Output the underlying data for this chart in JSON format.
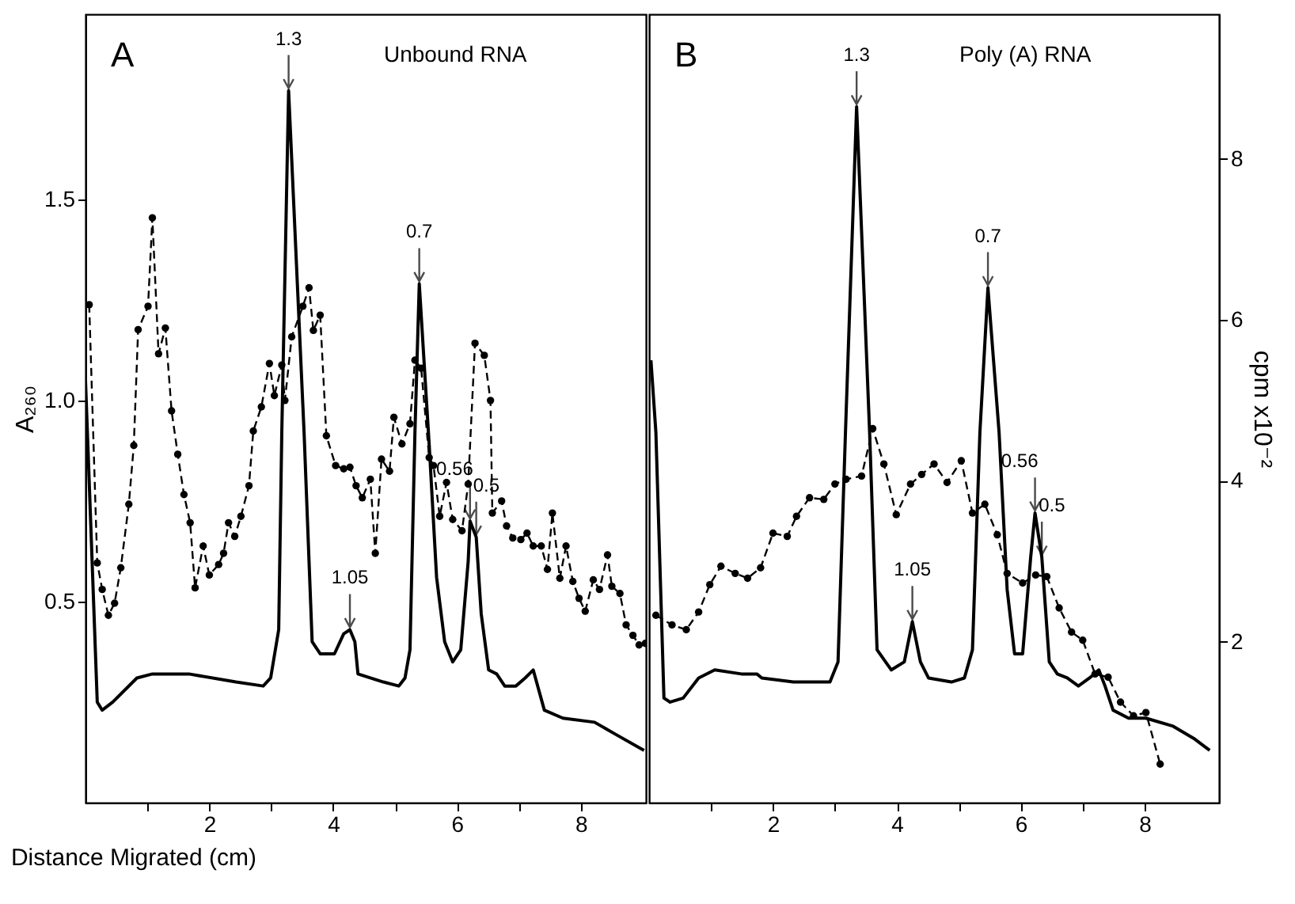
{
  "chart_data": [
    {
      "type": "line",
      "title": "Unbound RNA",
      "xlabel": "Distance Migrated (cm)",
      "ylabel": "A₂₆₀",
      "xlim": [
        0,
        9.05
      ],
      "xticks": [
        {
          "value": 1,
          "label": null
        },
        2,
        {
          "value": 3,
          "label": null
        },
        4,
        {
          "value": 5,
          "label": null
        },
        6,
        {
          "value": 7,
          "label": null
        },
        8
      ],
      "ylim": [
        0,
        1.96
      ],
      "yticks": [
        {
          "value": 0.5,
          "label": "0.5"
        },
        {
          "value": 1,
          "label": "1.0"
        },
        {
          "value": 1.5,
          "label": "1.5"
        }
      ],
      "y2lim": [
        0,
        9.8
      ],
      "legend": false,
      "grid": false,
      "annotations": [
        "A",
        {
          "text": "1.3",
          "x": 3.28,
          "y": 1.77
        },
        {
          "text": "1.05",
          "x": 4.27,
          "y": 0.43
        },
        {
          "text": "0.7",
          "x": 5.39,
          "y": 1.29
        },
        {
          "text": "0.56",
          "x": 6.21,
          "y": 0.7
        },
        {
          "text": "0.5",
          "x": 6.31,
          "y": 0.66
        }
      ],
      "series": [
        {
          "type": "line",
          "color": "#000000",
          "line_style": "solid",
          "marker": "none",
          "x": [
            0.0,
            0.19,
            0.27,
            0.44,
            0.83,
            1.08,
            1.67,
            2.43,
            2.87,
            2.99,
            3.12,
            3.17,
            3.28,
            3.53,
            3.66,
            3.79,
            4.02,
            4.17,
            4.27,
            4.35,
            4.4,
            4.81,
            5.06,
            5.16,
            5.24,
            5.32,
            5.39,
            5.55,
            5.67,
            5.8,
            5.93,
            6.06,
            6.18,
            6.21,
            6.31,
            6.39,
            6.51,
            6.64,
            6.77,
            6.95,
            7.1,
            7.23,
            7.41,
            7.71,
            8.22,
            8.56,
            9.02
          ],
          "values": [
            1.05,
            0.25,
            0.23,
            0.25,
            0.31,
            0.32,
            0.32,
            0.3,
            0.29,
            0.31,
            0.43,
            0.92,
            1.77,
            0.92,
            0.4,
            0.37,
            0.37,
            0.42,
            0.43,
            0.4,
            0.32,
            0.3,
            0.29,
            0.31,
            0.38,
            0.92,
            1.29,
            0.89,
            0.56,
            0.4,
            0.35,
            0.38,
            0.6,
            0.7,
            0.66,
            0.47,
            0.33,
            0.32,
            0.29,
            0.29,
            0.31,
            0.33,
            0.23,
            0.21,
            0.2,
            0.17,
            0.13
          ]
        },
        {
          "type": "line",
          "axis": "y2",
          "color": "#000000",
          "line_style": "dashed",
          "marker": "circle",
          "x": [
            0.06,
            0.19,
            0.27,
            0.37,
            0.47,
            0.57,
            0.7,
            0.78,
            0.85,
            1.01,
            1.08,
            1.18,
            1.29,
            1.39,
            1.49,
            1.59,
            1.69,
            1.77,
            1.9,
            2.0,
            2.15,
            2.23,
            2.31,
            2.41,
            2.51,
            2.64,
            2.71,
            2.84,
            2.97,
            3.05,
            3.17,
            3.22,
            3.33,
            3.51,
            3.61,
            3.68,
            3.79,
            3.89,
            4.04,
            4.17,
            4.27,
            4.37,
            4.47,
            4.6,
            4.68,
            4.78,
            4.91,
            4.98,
            5.11,
            5.24,
            5.32,
            5.42,
            5.55,
            5.62,
            5.72,
            5.83,
            5.93,
            6.08,
            6.18,
            6.29,
            6.44,
            6.54,
            6.57,
            6.72,
            6.8,
            6.9,
            7.03,
            7.13,
            7.23,
            7.36,
            7.46,
            7.54,
            7.66,
            7.76,
            7.87,
            7.97,
            8.07,
            8.2,
            8.3,
            8.43,
            8.5,
            8.63,
            8.73,
            8.84,
            8.94,
            9.04
          ],
          "values": [
            6.19,
            2.98,
            2.65,
            2.33,
            2.48,
            2.92,
            3.71,
            4.44,
            5.88,
            6.17,
            7.27,
            5.58,
            5.9,
            4.87,
            4.33,
            3.83,
            3.48,
            2.67,
            3.19,
            2.83,
            2.96,
            3.1,
            3.48,
            3.31,
            3.56,
            3.94,
            4.62,
            4.92,
            5.46,
            5.06,
            5.44,
            5.0,
            5.79,
            6.17,
            6.4,
            5.87,
            6.06,
            4.56,
            4.19,
            4.15,
            4.17,
            3.94,
            3.79,
            4.02,
            3.1,
            4.27,
            4.12,
            4.79,
            4.46,
            4.71,
            5.5,
            5.4,
            4.29,
            4.19,
            3.56,
            3.98,
            3.52,
            3.38,
            3.96,
            5.71,
            5.56,
            5.0,
            3.6,
            3.75,
            3.44,
            3.29,
            3.27,
            3.35,
            3.19,
            3.19,
            2.9,
            3.6,
            2.79,
            3.19,
            2.75,
            2.54,
            2.38,
            2.77,
            2.65,
            3.08,
            2.69,
            2.6,
            2.21,
            2.08,
            1.96,
            1.98
          ]
        }
      ]
    },
    {
      "type": "line",
      "title": "Poly (A) RNA",
      "y2label": "cpm x10⁻²",
      "xlim": [
        0,
        9.2
      ],
      "xticks": [
        {
          "value": 1,
          "label": null
        },
        2,
        {
          "value": 3,
          "label": null
        },
        4,
        {
          "value": 5,
          "label": null
        },
        6,
        {
          "value": 7,
          "label": null
        },
        8
      ],
      "ylim": [
        0,
        1.96
      ],
      "y2lim": [
        0,
        9.8
      ],
      "y2ticks": [
        2,
        4,
        6,
        8
      ],
      "legend": false,
      "grid": false,
      "annotations": [
        "B",
        {
          "text": "1.3",
          "x": 3.35,
          "y": 1.73
        },
        {
          "text": "1.05",
          "x": 4.25,
          "y": 0.45
        },
        {
          "text": "0.7",
          "x": 5.47,
          "y": 1.28
        },
        {
          "text": "0.56",
          "x": 6.23,
          "y": 0.72
        },
        {
          "text": "0.5",
          "x": 6.34,
          "y": 0.61
        }
      ],
      "series": [
        {
          "type": "line",
          "color": "#000000",
          "line_style": "solid",
          "marker": "none",
          "x": [
            0.03,
            0.11,
            0.24,
            0.34,
            0.55,
            0.8,
            1.06,
            1.49,
            1.74,
            1.82,
            2.33,
            2.92,
            3.05,
            3.17,
            3.35,
            3.56,
            3.68,
            3.91,
            4.12,
            4.25,
            4.38,
            4.51,
            4.88,
            5.09,
            5.22,
            5.34,
            5.47,
            5.65,
            5.78,
            5.9,
            6.03,
            6.16,
            6.23,
            6.34,
            6.46,
            6.59,
            6.75,
            6.93,
            7.11,
            7.26,
            7.36,
            7.49,
            7.74,
            8.02,
            8.46,
            8.79,
            9.05
          ],
          "values": [
            1.1,
            0.92,
            0.26,
            0.25,
            0.26,
            0.31,
            0.33,
            0.32,
            0.32,
            0.31,
            0.3,
            0.3,
            0.35,
            0.92,
            1.73,
            0.92,
            0.38,
            0.33,
            0.35,
            0.45,
            0.35,
            0.31,
            0.3,
            0.31,
            0.38,
            0.92,
            1.28,
            0.92,
            0.53,
            0.37,
            0.37,
            0.61,
            0.72,
            0.61,
            0.35,
            0.32,
            0.31,
            0.29,
            0.31,
            0.33,
            0.29,
            0.23,
            0.21,
            0.21,
            0.19,
            0.16,
            0.13
          ]
        },
        {
          "type": "line",
          "axis": "y2",
          "color": "#000000",
          "line_style": "dashed",
          "marker": "circle",
          "x": [
            0.11,
            0.37,
            0.6,
            0.8,
            0.98,
            1.16,
            1.39,
            1.59,
            1.8,
            2.0,
            2.23,
            2.38,
            2.59,
            2.82,
            3.0,
            3.18,
            3.43,
            3.61,
            3.79,
            3.99,
            4.22,
            4.4,
            4.6,
            4.81,
            5.04,
            5.22,
            5.42,
            5.62,
            5.78,
            6.03,
            6.24,
            6.42,
            6.62,
            6.82,
            7.0,
            7.2,
            7.41,
            7.61,
            7.82,
            8.02,
            8.25
          ],
          "values": [
            2.33,
            2.21,
            2.15,
            2.37,
            2.71,
            2.94,
            2.85,
            2.79,
            2.92,
            3.35,
            3.31,
            3.56,
            3.79,
            3.77,
            3.96,
            4.02,
            4.06,
            4.65,
            4.21,
            3.58,
            3.96,
            4.08,
            4.21,
            3.98,
            4.25,
            3.6,
            3.71,
            3.33,
            2.85,
            2.73,
            2.83,
            2.81,
            2.42,
            2.12,
            2.02,
            1.6,
            1.56,
            1.25,
            1.08,
            1.12,
            0.48
          ]
        }
      ]
    }
  ]
}
